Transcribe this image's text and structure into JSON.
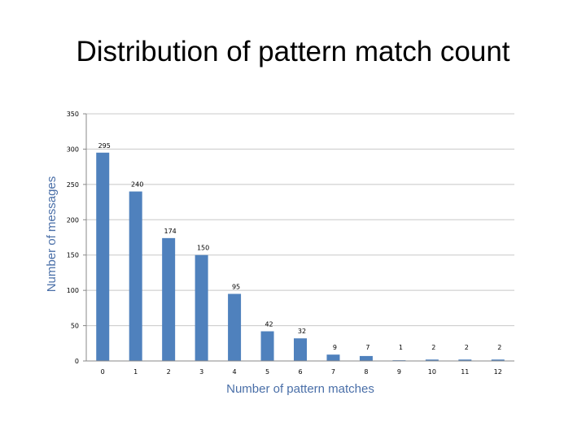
{
  "chart_data": {
    "type": "bar",
    "title": "Distribution of pattern match count",
    "xlabel": "Number of pattern matches",
    "ylabel": "Number of messages",
    "categories": [
      "0",
      "1",
      "2",
      "3",
      "4",
      "5",
      "6",
      "7",
      "8",
      "9",
      "10",
      "11",
      "12"
    ],
    "values": [
      295,
      240,
      174,
      150,
      95,
      42,
      32,
      9,
      7,
      1,
      2,
      2,
      2
    ],
    "ylim": [
      0,
      350
    ],
    "yticks": [
      "0",
      "50",
      "100",
      "150",
      "200",
      "250",
      "300",
      "350"
    ],
    "grid": true,
    "legend": "none",
    "bar_color": "#4f81bd",
    "grid_color": "#c8c8c8"
  }
}
